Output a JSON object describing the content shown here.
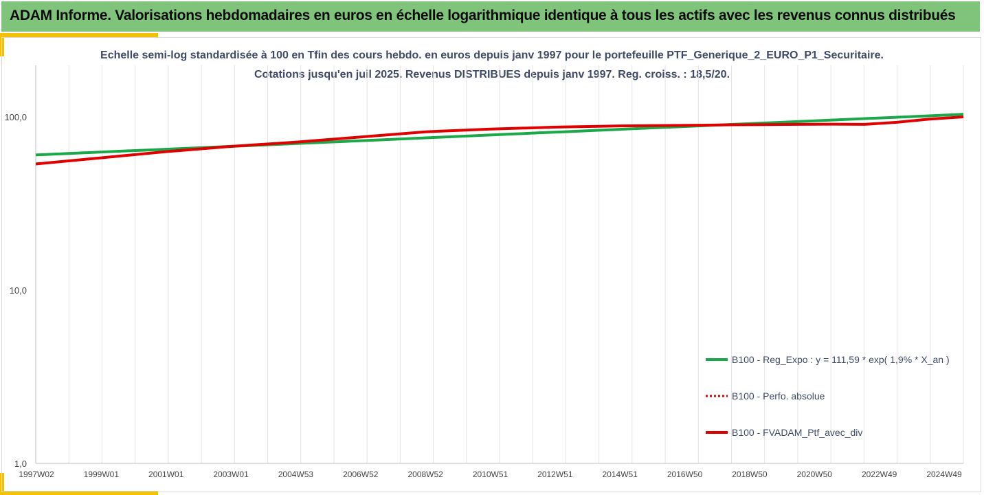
{
  "header": {
    "title": "ADAM Informe. Valorisations hebdomadaires en euros en échelle logarithmique identique à tous les actifs avec les revenus connus distribués",
    "bg_color": "#80c47c",
    "accent_color": "#f2c200"
  },
  "chart_data": {
    "type": "line",
    "title_line1": "Echelle semi-log standardisée à 100 en Tfin des cours hebdo.  en euros depuis janv 1997 pour le portefeuille PTF_Generique_2_EURO_P1_Securitaire.",
    "title_line2": "Cotations  jusqu'en juil 2025. Revenus DISTRIBUES depuis janv 1997. Reg. croiss. : 18,5/20.",
    "y_scale": "log",
    "ylim": [
      1,
      200
    ],
    "y_ticks": [
      "1,0",
      "10,0",
      "100,0"
    ],
    "x_tick_labels": [
      "1997W02",
      "1999W01",
      "2001W01",
      "2003W01",
      "2004W53",
      "2006W52",
      "2008W52",
      "2010W51",
      "2012W51",
      "2014W51",
      "2016W50",
      "2018W50",
      "2020W50",
      "2022W49",
      "2024W49"
    ],
    "x_range_years": [
      1997.0,
      2025.55
    ],
    "grid": "vertical",
    "legend_position": "right",
    "series": [
      {
        "name": "B100 - Reg_Expo : y = 111,59 * exp( 1,9% *  X_an )",
        "color": "#1aa84a",
        "style": "solid",
        "x": [
          1997.0,
          2025.55
        ],
        "values": [
          60.3,
          103.5
        ]
      },
      {
        "name": "B100 - Perfo. absolue",
        "color": "#e00000",
        "style": "dotted",
        "legend_only": true,
        "x": [],
        "values": []
      },
      {
        "name": "B100 - FVADAM_Ptf_avec_div",
        "color": "#e00000",
        "style": "solid",
        "x": [
          1997.0,
          1999.0,
          2001.0,
          2003.0,
          2005.0,
          2007.0,
          2009.0,
          2011.0,
          2013.0,
          2015.0,
          2016.5,
          2017.5,
          2018.5,
          2019.5,
          2020.5,
          2021.5,
          2022.5,
          2023.5,
          2024.5,
          2025.55
        ],
        "values": [
          53.5,
          58.0,
          63.0,
          67.5,
          71.5,
          76.5,
          82.0,
          85.0,
          87.3,
          88.7,
          89.2,
          89.5,
          90.0,
          90.3,
          90.5,
          90.8,
          90.5,
          93.0,
          97.0,
          100.0
        ]
      }
    ]
  }
}
